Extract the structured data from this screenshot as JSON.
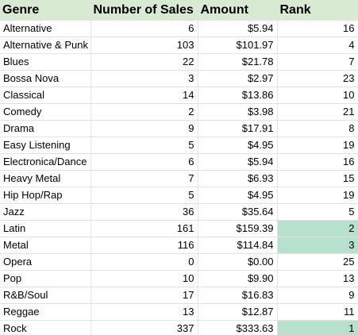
{
  "columns": [
    "Genre",
    "Number of Sales",
    "Amount",
    "Rank"
  ],
  "rows": [
    [
      "Alternative",
      "6",
      "$5.94",
      "16"
    ],
    [
      "Alternative & Punk",
      "103",
      "$101.97",
      "4"
    ],
    [
      "Blues",
      "22",
      "$21.78",
      "7"
    ],
    [
      "Bossa Nova",
      "3",
      "$2.97",
      "23"
    ],
    [
      "Classical",
      "14",
      "$13.86",
      "10"
    ],
    [
      "Comedy",
      "2",
      "$3.98",
      "21"
    ],
    [
      "Drama",
      "9",
      "$17.91",
      "8"
    ],
    [
      "Easy Listening",
      "5",
      "$4.95",
      "19"
    ],
    [
      "Electronica/Dance",
      "6",
      "$5.94",
      "16"
    ],
    [
      "Heavy Metal",
      "7",
      "$6.93",
      "15"
    ],
    [
      "Hip Hop/Rap",
      "5",
      "$4.95",
      "19"
    ],
    [
      "Jazz",
      "36",
      "$35.64",
      "5"
    ],
    [
      "Latin",
      "161",
      "$159.39",
      "2"
    ],
    [
      "Metal",
      "116",
      "$114.84",
      "3"
    ],
    [
      "Opera",
      "0",
      "$0.00",
      "25"
    ],
    [
      "Pop",
      "10",
      "$9.90",
      "13"
    ],
    [
      "R&B/Soul",
      "17",
      "$16.83",
      "9"
    ],
    [
      "Reggae",
      "13",
      "$12.87",
      "11"
    ],
    [
      "Rock",
      "337",
      "$333.63",
      "1"
    ]
  ],
  "highlighted_rank_values": [
    "1",
    "2",
    "3"
  ],
  "colors": {
    "header_background": "#d9ead3",
    "highlight_background": "#b7e1cd",
    "gridline": "#e2e2e2"
  }
}
